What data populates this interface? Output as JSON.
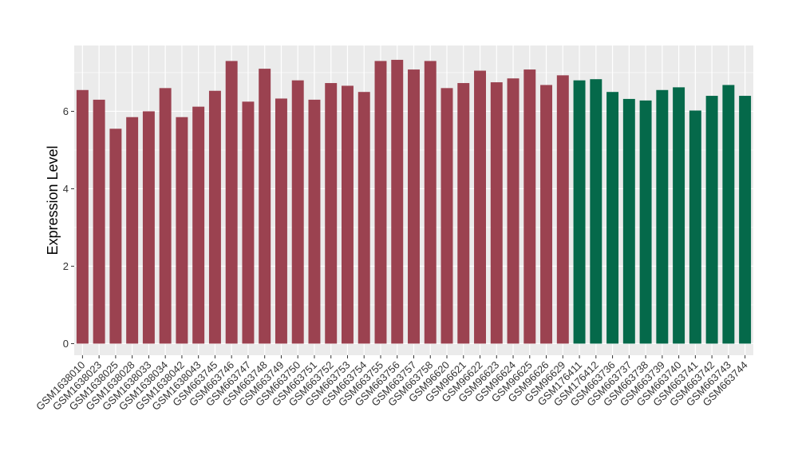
{
  "chart_data": {
    "type": "bar",
    "title": "",
    "xlabel": "",
    "ylabel": "Expression Level",
    "ylim": [
      -0.3,
      7.7
    ],
    "yticks": [
      0,
      2,
      4,
      6
    ],
    "grid": true,
    "legend": "none",
    "colors": {
      "group_a": "#9b4250",
      "group_b": "#05694a",
      "panel": "#ebebeb",
      "grid": "#ffffff"
    },
    "categories": [
      "GSM1638010",
      "GSM1638023",
      "GSM1638025",
      "GSM1638028",
      "GSM1638033",
      "GSM1638034",
      "GSM1638042",
      "GSM1638043",
      "GSM663745",
      "GSM663746",
      "GSM663747",
      "GSM663748",
      "GSM663749",
      "GSM663750",
      "GSM663751",
      "GSM663752",
      "GSM663753",
      "GSM663754",
      "GSM663755",
      "GSM663756",
      "GSM663757",
      "GSM663758",
      "GSM96620",
      "GSM96621",
      "GSM96622",
      "GSM96623",
      "GSM96624",
      "GSM96625",
      "GSM96626",
      "GSM96629",
      "GSM176411",
      "GSM176412",
      "GSM663736",
      "GSM663737",
      "GSM663738",
      "GSM663739",
      "GSM663740",
      "GSM663741",
      "GSM663742",
      "GSM663743",
      "GSM663744"
    ],
    "values": [
      6.55,
      6.3,
      5.55,
      5.85,
      6.0,
      6.6,
      5.85,
      6.12,
      6.53,
      7.3,
      6.25,
      7.1,
      6.33,
      6.8,
      6.3,
      6.73,
      6.66,
      6.5,
      7.3,
      7.33,
      7.08,
      7.3,
      6.6,
      6.73,
      7.05,
      6.75,
      6.85,
      7.08,
      6.68,
      6.93,
      6.8,
      6.83,
      6.5,
      6.32,
      6.28,
      6.55,
      6.62,
      6.02,
      6.4,
      6.68,
      6.4
    ],
    "groups": [
      "a",
      "a",
      "a",
      "a",
      "a",
      "a",
      "a",
      "a",
      "a",
      "a",
      "a",
      "a",
      "a",
      "a",
      "a",
      "a",
      "a",
      "a",
      "a",
      "a",
      "a",
      "a",
      "a",
      "a",
      "a",
      "a",
      "a",
      "a",
      "a",
      "a",
      "b",
      "b",
      "b",
      "b",
      "b",
      "b",
      "b",
      "b",
      "b",
      "b",
      "b"
    ]
  }
}
